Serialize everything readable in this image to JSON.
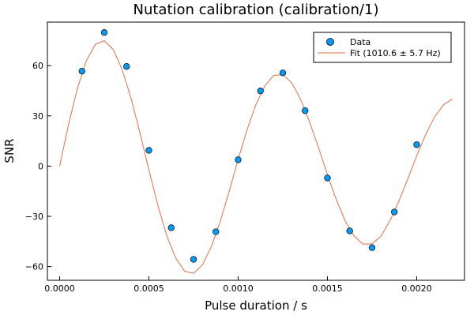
{
  "chart_data": {
    "type": "scatter",
    "title": "Nutation calibration (calibration/1)",
    "xlabel": "Pulse duration / s",
    "ylabel": "SNR",
    "xlim": [
      -6.86e-05,
      0.002268
    ],
    "ylim": [
      -68.2,
      86
    ],
    "xticks": [
      0,
      0.0005,
      0.001,
      0.0015,
      0.002
    ],
    "xtick_labels": [
      "0.0000",
      "0.0005",
      "0.0010",
      "0.0015",
      "0.0020"
    ],
    "yticks": [
      -60,
      -30,
      0,
      30,
      60
    ],
    "ytick_labels": [
      "−60",
      "−30",
      "0",
      "30",
      "60"
    ],
    "grid": false,
    "legend_position": "top-right",
    "series": [
      {
        "name": "Data",
        "kind": "scatter",
        "color": "#009af9",
        "x": [
          0.000125,
          0.00025,
          0.000375,
          0.0005,
          0.000625,
          0.00075,
          0.000875,
          0.001,
          0.001125,
          0.00125,
          0.001375,
          0.0015,
          0.001625,
          0.00175,
          0.001875,
          0.002
        ],
        "y": [
          56.7,
          79.8,
          59.5,
          9.4,
          -36.8,
          -55.7,
          -39.2,
          3.8,
          44.9,
          55.7,
          33.1,
          -7.1,
          -38.7,
          -48.7,
          -27.4,
          12.8
        ]
      },
      {
        "name": "Fit (1010.6 ± 5.7 Hz)",
        "kind": "line",
        "color": "#e26f46",
        "x": [
          0,
          5e-05,
          0.0001,
          0.00015,
          0.0002,
          0.00025,
          0.0003,
          0.00035,
          0.0004,
          0.00045,
          0.0005,
          0.00055,
          0.0006,
          0.00065,
          0.0007,
          0.00075,
          0.0008,
          0.00085,
          0.0009,
          0.00095,
          0.001,
          0.00105,
          0.0011,
          0.00115,
          0.0012,
          0.00125,
          0.0013,
          0.00135,
          0.0014,
          0.00145,
          0.0015,
          0.00155,
          0.0016,
          0.00165,
          0.0017,
          0.00175,
          0.0018,
          0.00185,
          0.0019,
          0.00195,
          0.002,
          0.00205,
          0.0021,
          0.00215,
          0.0022
        ],
        "y": [
          0,
          24.9,
          46.6,
          63.0,
          72.7,
          74.9,
          69.7,
          57.7,
          40.5,
          19.8,
          -2.3,
          -23.4,
          -41.5,
          -54.9,
          -62.8,
          -64.0,
          -59.0,
          -48.0,
          -32.8,
          -14.9,
          4.0,
          21.8,
          36.9,
          48.0,
          54.2,
          54.6,
          49.8,
          39.8,
          26.4,
          11.0,
          -5.2,
          -20.2,
          -32.9,
          -41.8,
          -46.6,
          -46.4,
          -41.9,
          -32.8,
          -21.1,
          -7.8,
          6.0,
          18.7,
          29.3,
          36.6,
          40.1
        ]
      }
    ]
  }
}
